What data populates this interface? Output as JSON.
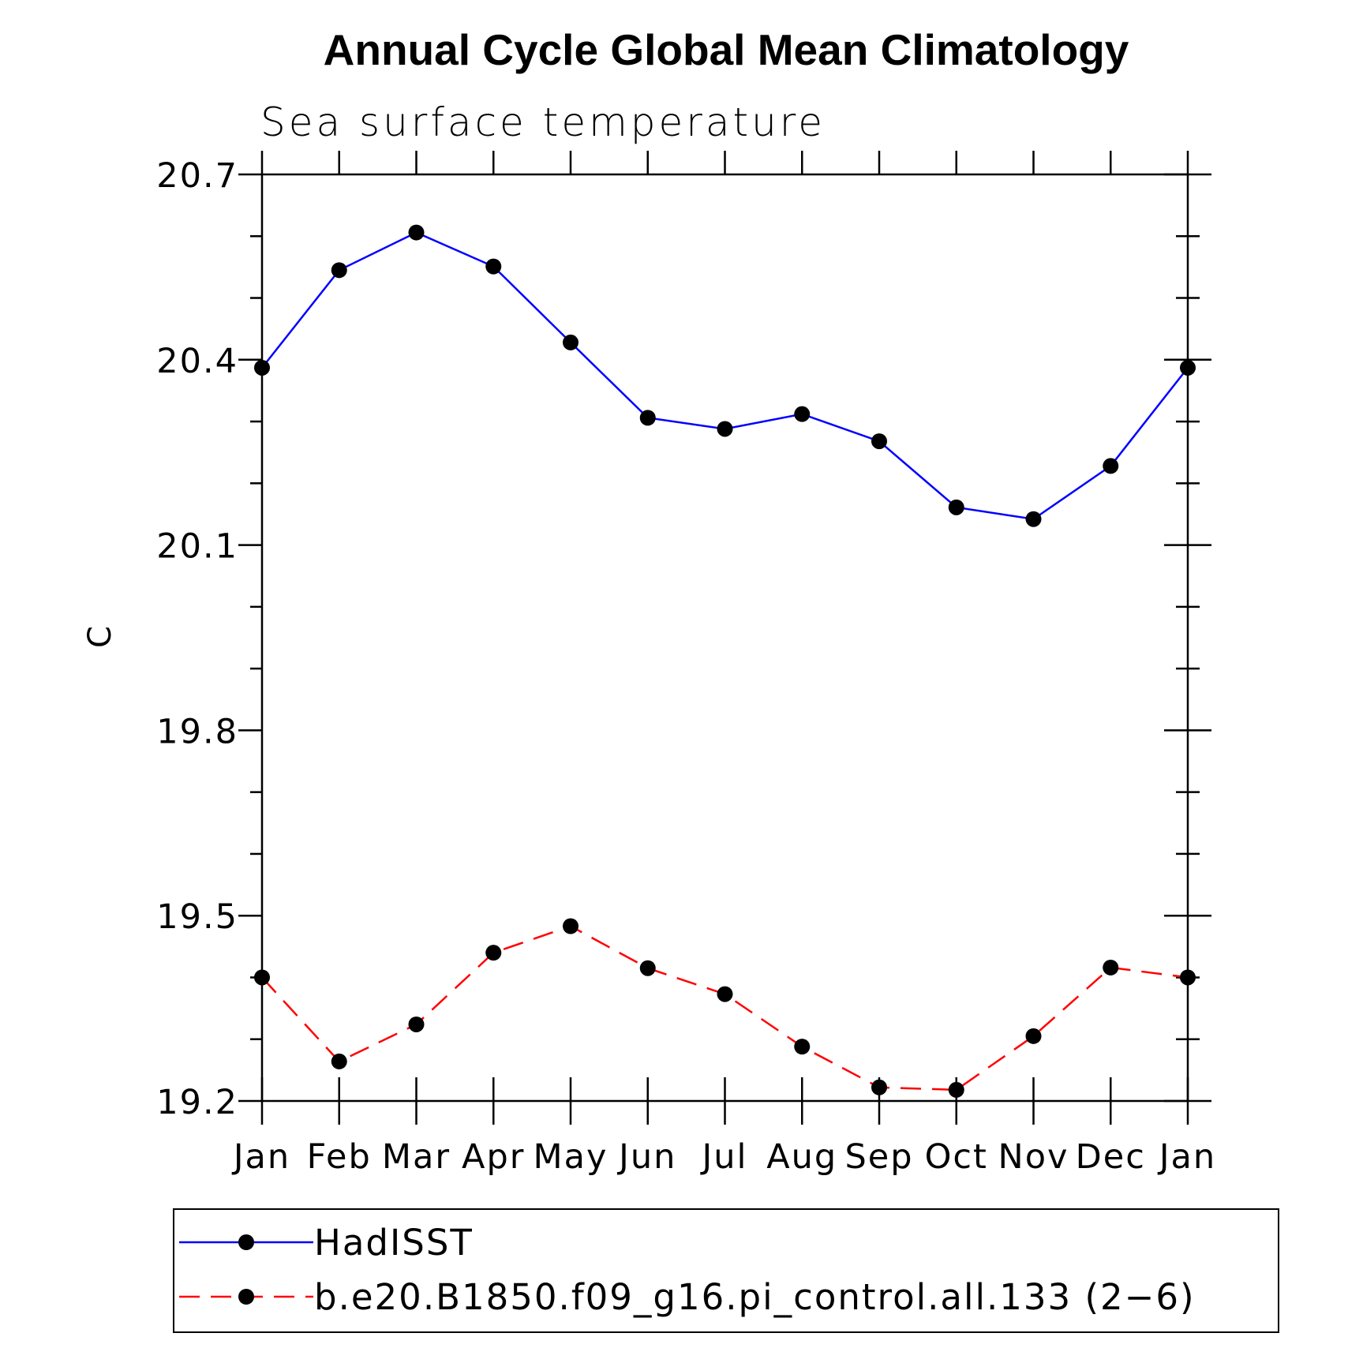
{
  "chart_data": {
    "type": "line",
    "title": "Annual Cycle Global Mean Climatology",
    "subtitle": "Sea surface temperature",
    "xlabel": "",
    "ylabel": "C",
    "categories": [
      "Jan",
      "Feb",
      "Mar",
      "Apr",
      "May",
      "Jun",
      "Jul",
      "Aug",
      "Sep",
      "Oct",
      "Nov",
      "Dec",
      "Jan"
    ],
    "ylim": [
      19.2,
      20.7
    ],
    "yticks": [
      "20.7",
      "20.4",
      "20.1",
      "19.8",
      "19.5",
      "19.2"
    ],
    "ytick_values": [
      20.7,
      20.4,
      20.1,
      19.8,
      19.5,
      19.2
    ],
    "yminor_step": 0.1,
    "grid": false,
    "legend_position": "bottom",
    "series": [
      {
        "name": "HadISST",
        "color": "#0000ff",
        "dash": "solid",
        "values": [
          20.387,
          20.545,
          20.606,
          20.551,
          20.428,
          20.306,
          20.288,
          20.312,
          20.268,
          20.161,
          20.142,
          20.228,
          20.387
        ]
      },
      {
        "name": "b.e20.B1850.f09_g16.pi_control.all.133 (2−6)",
        "color": "#ff0000",
        "dash": "dashed",
        "values": [
          19.4,
          19.264,
          19.324,
          19.44,
          19.483,
          19.415,
          19.373,
          19.288,
          19.222,
          19.218,
          19.305,
          19.416,
          19.4
        ]
      }
    ]
  }
}
